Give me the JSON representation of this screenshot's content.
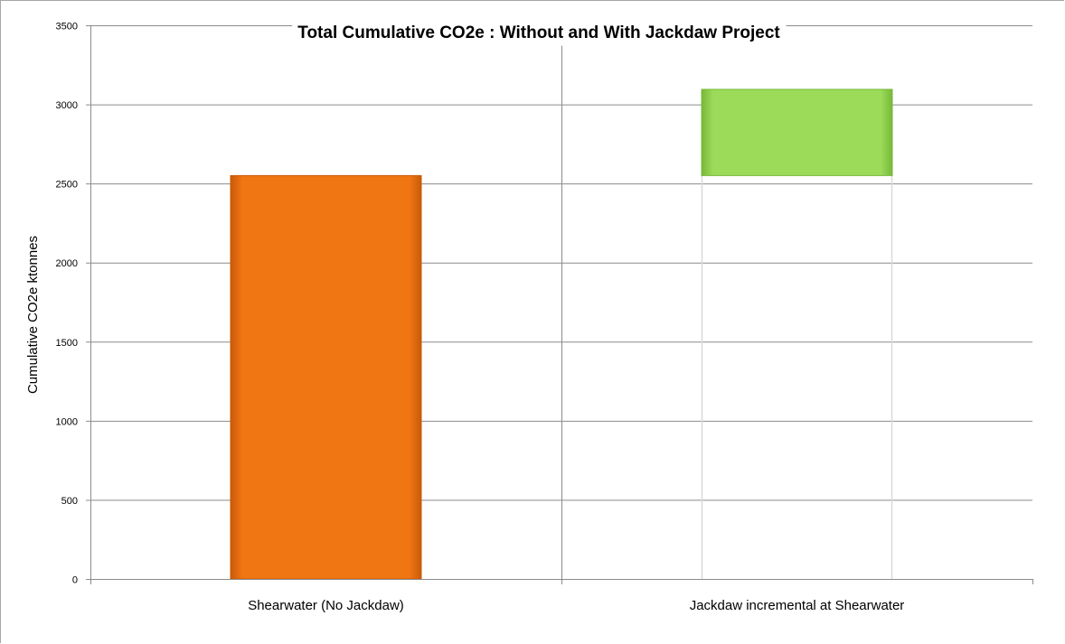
{
  "chart_data": {
    "type": "bar",
    "title": "Total Cumulative CO2e : Without and With Jackdaw Project",
    "xlabel": "",
    "ylabel": "Cumulative CO2e ktonnes",
    "categories": [
      "Shearwater (No Jackdaw)",
      "Jackdaw incremental at Shearwater"
    ],
    "stacked": true,
    "series": [
      {
        "values": [
          2550,
          2550
        ],
        "colors": [
          "#f07513",
          "transparent"
        ]
      },
      {
        "values": [
          0,
          545
        ],
        "colors": [
          "#9cdb59",
          "#9cdb59"
        ]
      }
    ],
    "ylim": [
      0,
      3500
    ],
    "yticks": [
      0,
      500,
      1000,
      1500,
      2000,
      2500,
      3000,
      3500
    ],
    "grid": true,
    "legend": "none"
  }
}
